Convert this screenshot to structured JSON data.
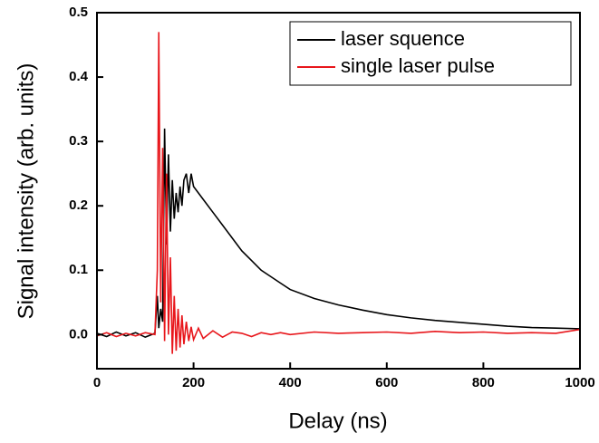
{
  "chart_data": {
    "type": "line",
    "x_label": "Delay (ns)",
    "y_label": "Signal intensity (arb. units)",
    "x": [
      0,
      20,
      40,
      60,
      80,
      100,
      120,
      125,
      128,
      132,
      136,
      140,
      144,
      148,
      152,
      156,
      160,
      164,
      168,
      172,
      176,
      180,
      185,
      190,
      195,
      200,
      210,
      220,
      240,
      260,
      280,
      300,
      320,
      340,
      360,
      380,
      400,
      450,
      500,
      550,
      600,
      650,
      700,
      750,
      800,
      850,
      900,
      950,
      1000
    ],
    "series": [
      {
        "name": "laser squence",
        "color": "#000000",
        "values": [
          0.002,
          -0.003,
          0.004,
          -0.002,
          0.003,
          -0.004,
          0.002,
          0.06,
          0.01,
          0.04,
          0.02,
          0.32,
          0.14,
          0.28,
          0.16,
          0.24,
          0.18,
          0.22,
          0.19,
          0.23,
          0.2,
          0.24,
          0.25,
          0.22,
          0.25,
          0.23,
          0.22,
          0.21,
          0.19,
          0.17,
          0.15,
          0.13,
          0.115,
          0.1,
          0.09,
          0.08,
          0.07,
          0.056,
          0.046,
          0.038,
          0.031,
          0.026,
          0.022,
          0.019,
          0.016,
          0.013,
          0.011,
          0.01,
          0.009
        ]
      },
      {
        "name": "single laser pulse",
        "color": "#e8161b",
        "values": [
          -0.002,
          0.003,
          -0.003,
          0.002,
          -0.002,
          0.003,
          0.0,
          0.1,
          0.47,
          0.05,
          0.29,
          -0.01,
          0.25,
          0.0,
          0.12,
          -0.03,
          0.06,
          -0.025,
          0.04,
          -0.02,
          0.03,
          -0.015,
          0.02,
          -0.01,
          0.012,
          -0.008,
          0.01,
          -0.006,
          0.006,
          -0.004,
          0.004,
          0.002,
          -0.003,
          0.003,
          0.0,
          0.003,
          0.0,
          0.004,
          0.002,
          0.003,
          0.004,
          0.002,
          0.005,
          0.003,
          0.004,
          0.002,
          0.003,
          0.002,
          0.008
        ]
      }
    ],
    "xlim": [
      0,
      1000
    ],
    "xticks": [
      0,
      200,
      400,
      600,
      800,
      1000
    ],
    "ylim": [
      -0.053,
      0.5
    ],
    "yticks": [
      {
        "value": 0,
        "label": "0.0"
      },
      0.1,
      0.2,
      0.3,
      0.4,
      0.5
    ],
    "legend": "upper right",
    "grid": false
  }
}
